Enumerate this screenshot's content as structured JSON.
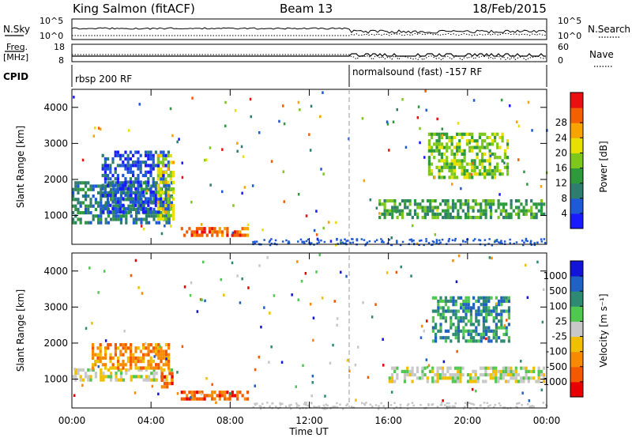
{
  "header": {
    "radar": "King Salmon (fitACF)",
    "beam": "Beam 13",
    "date": "18/Feb/2015"
  },
  "param_panel": {
    "nsky_label": "N.Sky",
    "nsky_ticks": [
      "10^5",
      "10^0"
    ],
    "freq_label": "Freq.",
    "freq_unit": "[MHz]",
    "freq_ticks": [
      "18",
      "8"
    ],
    "cpid_label": "CPID",
    "nsearch_label": "N.Search",
    "nsearch_ticks": [
      "10^5",
      "10^0"
    ],
    "nave_label": "Nave",
    "nave_ticks": [
      "60",
      "0"
    ],
    "cpid_segments": [
      {
        "name": "rbsp 200 RF",
        "start_hour": 0
      },
      {
        "name": "normalsound (fast) -157 RF",
        "start_hour": 14.1
      }
    ]
  },
  "chart_data": [
    {
      "type": "heatmap",
      "panel": "power",
      "ylabel": "Slant Range [km]",
      "yticks": [
        "1000",
        "2000",
        "3000",
        "4000"
      ],
      "ylim": [
        200,
        4500
      ],
      "xlim": [
        0,
        24
      ],
      "colorbar_label": "Power [dB]",
      "colorbar_ticks": [
        "4",
        "8",
        "12",
        "16",
        "20",
        "24",
        "28"
      ],
      "colors": [
        "#1a1aff",
        "#1f5ad6",
        "#2e7d6e",
        "#2f9a3c",
        "#7ec81e",
        "#e8e000",
        "#f8a400",
        "#f36000",
        "#e81010"
      ],
      "regions": [
        {
          "x": [
            0.0,
            5.2
          ],
          "y": [
            750,
            1950
          ],
          "level": 2
        },
        {
          "x": [
            1.5,
            5.0
          ],
          "y": [
            1000,
            2800
          ],
          "level": 1
        },
        {
          "x": [
            4.3,
            5.2
          ],
          "y": [
            800,
            2700
          ],
          "level": 5
        },
        {
          "x": [
            5.5,
            9.0
          ],
          "y": [
            380,
            680
          ],
          "level": 7
        },
        {
          "x": [
            15.5,
            24.0
          ],
          "y": [
            850,
            1450
          ],
          "level": 3
        },
        {
          "x": [
            18.0,
            22.2
          ],
          "y": [
            2000,
            3300
          ],
          "level": 4
        }
      ]
    },
    {
      "type": "heatmap",
      "panel": "velocity",
      "ylabel": "Slant Range [km]",
      "yticks": [
        "1000",
        "2000",
        "3000",
        "4000"
      ],
      "ylim": [
        200,
        4500
      ],
      "xlim": [
        0,
        24
      ],
      "colorbar_label": "Velocity [m s⁻¹]",
      "colorbar_ticks": [
        "1000",
        "500",
        "100",
        "25",
        "-25",
        "-100",
        "-500",
        "-1000"
      ],
      "colors": [
        "#1414d8",
        "#1f62c4",
        "#2e8a72",
        "#50c850",
        "#c8c8c8",
        "#f0c000",
        "#f88a00",
        "#f35a00",
        "#e80000"
      ],
      "regions": [
        {
          "x": [
            0.0,
            5.2
          ],
          "y": [
            850,
            1300
          ],
          "level": 4
        },
        {
          "x": [
            1.0,
            5.0
          ],
          "y": [
            1200,
            2000
          ],
          "level": 6
        },
        {
          "x": [
            4.5,
            5.2
          ],
          "y": [
            700,
            1200
          ],
          "level": 7
        },
        {
          "x": [
            5.5,
            9.0
          ],
          "y": [
            380,
            680
          ],
          "level": 7
        },
        {
          "x": [
            16.0,
            24.0
          ],
          "y": [
            850,
            1350
          ],
          "level": 4
        },
        {
          "x": [
            18.2,
            22.2
          ],
          "y": [
            2000,
            3300
          ],
          "level": 2
        }
      ]
    }
  ],
  "x_axis": {
    "label": "Time UT",
    "ticks": [
      "00:00",
      "04:00",
      "08:00",
      "12:00",
      "16:00",
      "20:00",
      "00:00"
    ]
  }
}
